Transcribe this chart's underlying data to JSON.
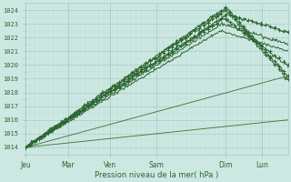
{
  "xlabel": "Pression niveau de la mer( hPa )",
  "ylim": [
    1013.5,
    1024.5
  ],
  "xlim": [
    0,
    7.2
  ],
  "yticks": [
    1014,
    1015,
    1016,
    1017,
    1018,
    1019,
    1020,
    1021,
    1022,
    1023,
    1024
  ],
  "day_labels": [
    "Jeu",
    "Mar",
    "Ven",
    "Sam",
    "Dim",
    "Lun"
  ],
  "day_positions": [
    0.0,
    1.17,
    2.33,
    3.6,
    5.5,
    6.5
  ],
  "bg_color": "#cde8e2",
  "grid_major_color": "#a8ccc4",
  "grid_minor_color": "#bcddd7",
  "dark_green": "#2d6630",
  "mid_green": "#3d7a3d",
  "line_width": 0.7,
  "bundle_lines": [
    [
      1014.0,
      1024.2,
      5.5,
      1019.2,
      0.06
    ],
    [
      1014.0,
      1023.7,
      5.55,
      1022.4,
      0.07
    ],
    [
      1014.0,
      1023.4,
      5.45,
      1020.0,
      0.08
    ],
    [
      1014.0,
      1023.0,
      5.4,
      1021.5,
      0.06
    ],
    [
      1014.0,
      1022.5,
      5.35,
      1021.0,
      0.05
    ],
    [
      1014.0,
      1024.0,
      5.5,
      1019.0,
      0.1
    ]
  ],
  "envelope_lines": [
    [
      1014.0,
      1019.2,
      7.2
    ],
    [
      1014.0,
      1016.0,
      7.2
    ]
  ],
  "marker_line_indices": [
    0,
    1,
    2,
    5
  ],
  "n_points": 300,
  "n_marker_points": 60
}
